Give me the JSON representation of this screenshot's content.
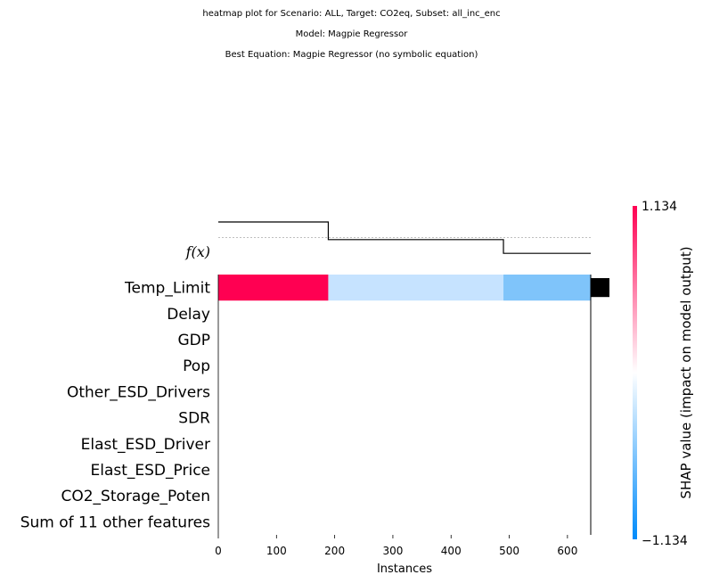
{
  "titles": {
    "line1": "heatmap plot for Scenario: ALL, Target: CO2eq, Subset: all_inc_enc",
    "line2": "Model: Magpie Regressor",
    "line3": "Best Equation: Magpie Regressor (no symbolic equation)"
  },
  "chart_data": {
    "type": "heatmap",
    "xlabel": "Instances",
    "xlim": [
      0,
      640
    ],
    "xticks": [
      0,
      100,
      200,
      300,
      400,
      500,
      600
    ],
    "fx_label": "f(x)",
    "features": [
      "Temp_Limit",
      "Delay",
      "GDP",
      "Pop",
      "Other_ESD_Drivers",
      "SDR",
      "Elast_ESD_Driver",
      "Elast_ESD_Price",
      "CO2_Storage_Poten",
      "Sum of 11 other features"
    ],
    "segments": [
      {
        "x_start": 0,
        "x_end": 189,
        "shap": 1.134,
        "color": "#ff0052",
        "fx": 1.0
      },
      {
        "x_start": 189,
        "x_end": 490,
        "shap": -0.3,
        "color": "#c6e3ff",
        "fx": 0.55
      },
      {
        "x_start": 490,
        "x_end": 640,
        "shap": -0.55,
        "color": "#7fc4fa",
        "fx": 0.2
      }
    ],
    "fx_baseline": 0.6,
    "importance": [
      1.0,
      0,
      0,
      0,
      0,
      0,
      0,
      0,
      0,
      0
    ],
    "colorbar": {
      "label": "SHAP value (impact on model output)",
      "max_label": "1.134",
      "min_label": "−1.134",
      "colors": [
        "#ff0052",
        "#ffffff",
        "#008bfb"
      ]
    }
  }
}
